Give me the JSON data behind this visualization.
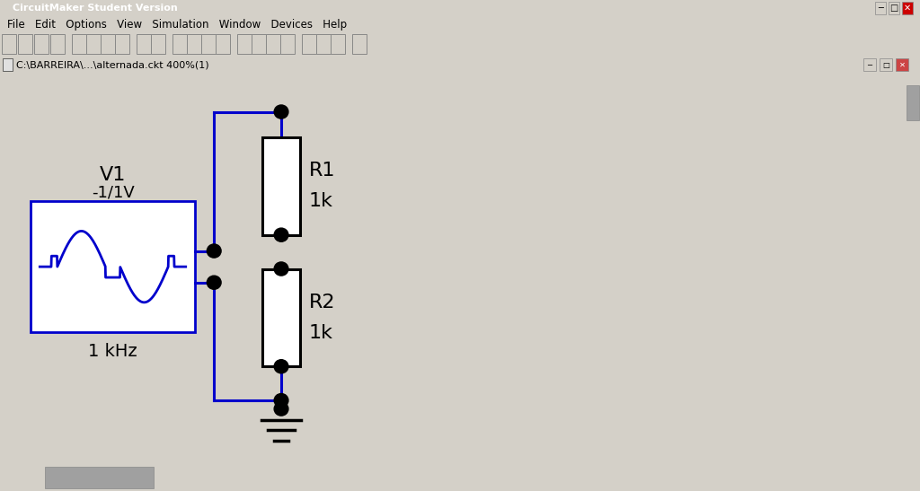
{
  "title_bar": "CircuitMaker Student Version",
  "menu_items": "File   Edit   Options   View   Simulation   Window   Devices   Help",
  "sub_title": "C:\\BARREIRA\\...\\alternada.ckt 400%(1)",
  "titlebar_bg": "#c0c0c0",
  "menubar_bg": "#d4d0c8",
  "toolbar_bg": "#d4d0c8",
  "subwin_bg": "#b8cce4",
  "canvas_bg": "#f8fafc",
  "wire_color": "#0000cc",
  "comp_color": "#000000",
  "node_color": "#000000",
  "ground_color": "#000000",
  "gen_label1": "V1",
  "gen_label2": "-1/1V",
  "gen_label3": "1 kHz",
  "r1_label1": "R1",
  "r1_label2": "1k",
  "r2_label1": "R2",
  "r2_label2": "1k",
  "scrollbar_bg": "#d4d0c8",
  "scrollbar_thumb": "#a0a0a0"
}
